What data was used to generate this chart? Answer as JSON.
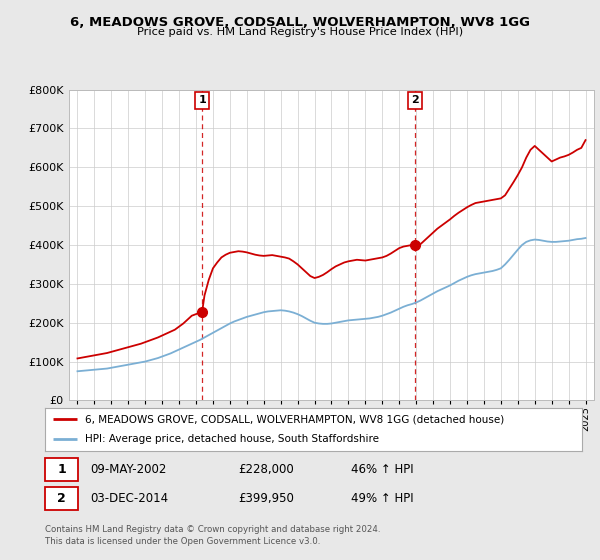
{
  "title": "6, MEADOWS GROVE, CODSALL, WOLVERHAMPTON, WV8 1GG",
  "subtitle": "Price paid vs. HM Land Registry's House Price Index (HPI)",
  "legend_line1": "6, MEADOWS GROVE, CODSALL, WOLVERHAMPTON, WV8 1GG (detached house)",
  "legend_line2": "HPI: Average price, detached house, South Staffordshire",
  "footnote": "Contains HM Land Registry data © Crown copyright and database right 2024.\nThis data is licensed under the Open Government Licence v3.0.",
  "sale1_date": "09-MAY-2002",
  "sale1_price": "£228,000",
  "sale1_hpi": "46% ↑ HPI",
  "sale2_date": "03-DEC-2014",
  "sale2_price": "£399,950",
  "sale2_hpi": "49% ↑ HPI",
  "sale1_year": 2002.36,
  "sale1_value": 228000,
  "sale2_year": 2014.92,
  "sale2_value": 399950,
  "red_color": "#cc0000",
  "blue_color": "#7bafd4",
  "background_color": "#e8e8e8",
  "plot_bg_color": "#ffffff",
  "ylim": [
    0,
    800000
  ],
  "xlim": [
    1994.5,
    2025.5
  ],
  "yticks": [
    0,
    100000,
    200000,
    300000,
    400000,
    500000,
    600000,
    700000,
    800000
  ],
  "xticks": [
    1995,
    1996,
    1997,
    1998,
    1999,
    2000,
    2001,
    2002,
    2003,
    2004,
    2005,
    2006,
    2007,
    2008,
    2009,
    2010,
    2011,
    2012,
    2013,
    2014,
    2015,
    2016,
    2017,
    2018,
    2019,
    2020,
    2021,
    2022,
    2023,
    2024,
    2025
  ],
  "red_years": [
    1995.0,
    1995.25,
    1995.5,
    1995.75,
    1996.0,
    1996.25,
    1996.5,
    1996.75,
    1997.0,
    1997.25,
    1997.5,
    1997.75,
    1998.0,
    1998.25,
    1998.5,
    1998.75,
    1999.0,
    1999.25,
    1999.5,
    1999.75,
    2000.0,
    2000.25,
    2000.5,
    2000.75,
    2001.0,
    2001.25,
    2001.5,
    2001.75,
    2002.36,
    2002.5,
    2002.75,
    2003.0,
    2003.25,
    2003.5,
    2003.75,
    2004.0,
    2004.25,
    2004.5,
    2004.75,
    2005.0,
    2005.25,
    2005.5,
    2005.75,
    2006.0,
    2006.25,
    2006.5,
    2006.75,
    2007.0,
    2007.25,
    2007.5,
    2007.75,
    2008.0,
    2008.25,
    2008.5,
    2008.75,
    2009.0,
    2009.25,
    2009.5,
    2009.75,
    2010.0,
    2010.25,
    2010.5,
    2010.75,
    2011.0,
    2011.25,
    2011.5,
    2011.75,
    2012.0,
    2012.25,
    2012.5,
    2012.75,
    2013.0,
    2013.25,
    2013.5,
    2013.75,
    2014.0,
    2014.25,
    2014.5,
    2014.75,
    2014.92,
    2015.0,
    2015.25,
    2015.5,
    2015.75,
    2016.0,
    2016.25,
    2016.5,
    2016.75,
    2017.0,
    2017.25,
    2017.5,
    2017.75,
    2018.0,
    2018.25,
    2018.5,
    2018.75,
    2019.0,
    2019.25,
    2019.5,
    2019.75,
    2020.0,
    2020.25,
    2020.5,
    2020.75,
    2021.0,
    2021.25,
    2021.5,
    2021.75,
    2022.0,
    2022.25,
    2022.5,
    2022.75,
    2023.0,
    2023.25,
    2023.5,
    2023.75,
    2024.0,
    2024.25,
    2024.5,
    2024.75,
    2025.0
  ],
  "red_values": [
    108000,
    110000,
    112000,
    114000,
    116000,
    118000,
    120000,
    122000,
    125000,
    128000,
    131000,
    134000,
    137000,
    140000,
    143000,
    146000,
    150000,
    154000,
    158000,
    162000,
    167000,
    172000,
    177000,
    182000,
    190000,
    198000,
    208000,
    218000,
    228000,
    270000,
    310000,
    340000,
    355000,
    368000,
    375000,
    380000,
    382000,
    384000,
    383000,
    381000,
    378000,
    375000,
    373000,
    372000,
    373000,
    374000,
    372000,
    370000,
    368000,
    365000,
    358000,
    350000,
    340000,
    330000,
    320000,
    315000,
    318000,
    323000,
    330000,
    338000,
    345000,
    350000,
    355000,
    358000,
    360000,
    362000,
    361000,
    360000,
    362000,
    364000,
    366000,
    368000,
    372000,
    378000,
    385000,
    392000,
    396000,
    398000,
    400000,
    400000,
    399950,
    402000,
    412000,
    422000,
    432000,
    442000,
    450000,
    458000,
    466000,
    475000,
    483000,
    490000,
    497000,
    503000,
    508000,
    510000,
    512000,
    514000,
    516000,
    518000,
    520000,
    528000,
    545000,
    562000,
    580000,
    600000,
    625000,
    645000,
    655000,
    645000,
    635000,
    625000,
    615000,
    620000,
    625000,
    628000,
    632000,
    638000,
    645000,
    650000,
    670000
  ],
  "blue_years": [
    1995.0,
    1995.25,
    1995.5,
    1995.75,
    1996.0,
    1996.25,
    1996.5,
    1996.75,
    1997.0,
    1997.25,
    1997.5,
    1997.75,
    1998.0,
    1998.25,
    1998.5,
    1998.75,
    1999.0,
    1999.25,
    1999.5,
    1999.75,
    2000.0,
    2000.25,
    2000.5,
    2000.75,
    2001.0,
    2001.25,
    2001.5,
    2001.75,
    2002.0,
    2002.25,
    2002.5,
    2002.75,
    2003.0,
    2003.25,
    2003.5,
    2003.75,
    2004.0,
    2004.25,
    2004.5,
    2004.75,
    2005.0,
    2005.25,
    2005.5,
    2005.75,
    2006.0,
    2006.25,
    2006.5,
    2006.75,
    2007.0,
    2007.25,
    2007.5,
    2007.75,
    2008.0,
    2008.25,
    2008.5,
    2008.75,
    2009.0,
    2009.25,
    2009.5,
    2009.75,
    2010.0,
    2010.25,
    2010.5,
    2010.75,
    2011.0,
    2011.25,
    2011.5,
    2011.75,
    2012.0,
    2012.25,
    2012.5,
    2012.75,
    2013.0,
    2013.25,
    2013.5,
    2013.75,
    2014.0,
    2014.25,
    2014.5,
    2014.75,
    2015.0,
    2015.25,
    2015.5,
    2015.75,
    2016.0,
    2016.25,
    2016.5,
    2016.75,
    2017.0,
    2017.25,
    2017.5,
    2017.75,
    2018.0,
    2018.25,
    2018.5,
    2018.75,
    2019.0,
    2019.25,
    2019.5,
    2019.75,
    2020.0,
    2020.25,
    2020.5,
    2020.75,
    2021.0,
    2021.25,
    2021.5,
    2021.75,
    2022.0,
    2022.25,
    2022.5,
    2022.75,
    2023.0,
    2023.25,
    2023.5,
    2023.75,
    2024.0,
    2024.25,
    2024.5,
    2024.75,
    2025.0
  ],
  "blue_values": [
    75000,
    76000,
    77000,
    78000,
    79000,
    80000,
    81000,
    82000,
    84000,
    86000,
    88000,
    90000,
    92000,
    94000,
    96000,
    98000,
    100000,
    103000,
    106000,
    109000,
    113000,
    117000,
    121000,
    126000,
    131000,
    136000,
    141000,
    146000,
    151000,
    156000,
    162000,
    168000,
    174000,
    180000,
    186000,
    192000,
    198000,
    203000,
    207000,
    211000,
    215000,
    218000,
    221000,
    224000,
    227000,
    229000,
    230000,
    231000,
    232000,
    231000,
    229000,
    226000,
    222000,
    217000,
    211000,
    205000,
    200000,
    198000,
    197000,
    197000,
    198000,
    200000,
    202000,
    204000,
    206000,
    207000,
    208000,
    209000,
    210000,
    211000,
    213000,
    215000,
    218000,
    222000,
    226000,
    231000,
    236000,
    241000,
    245000,
    248000,
    252000,
    257000,
    263000,
    269000,
    275000,
    281000,
    286000,
    291000,
    296000,
    302000,
    308000,
    313000,
    318000,
    322000,
    325000,
    327000,
    329000,
    331000,
    333000,
    336000,
    340000,
    350000,
    362000,
    375000,
    388000,
    400000,
    408000,
    412000,
    414000,
    413000,
    411000,
    409000,
    408000,
    408000,
    409000,
    410000,
    411000,
    413000,
    415000,
    416000,
    418000
  ]
}
